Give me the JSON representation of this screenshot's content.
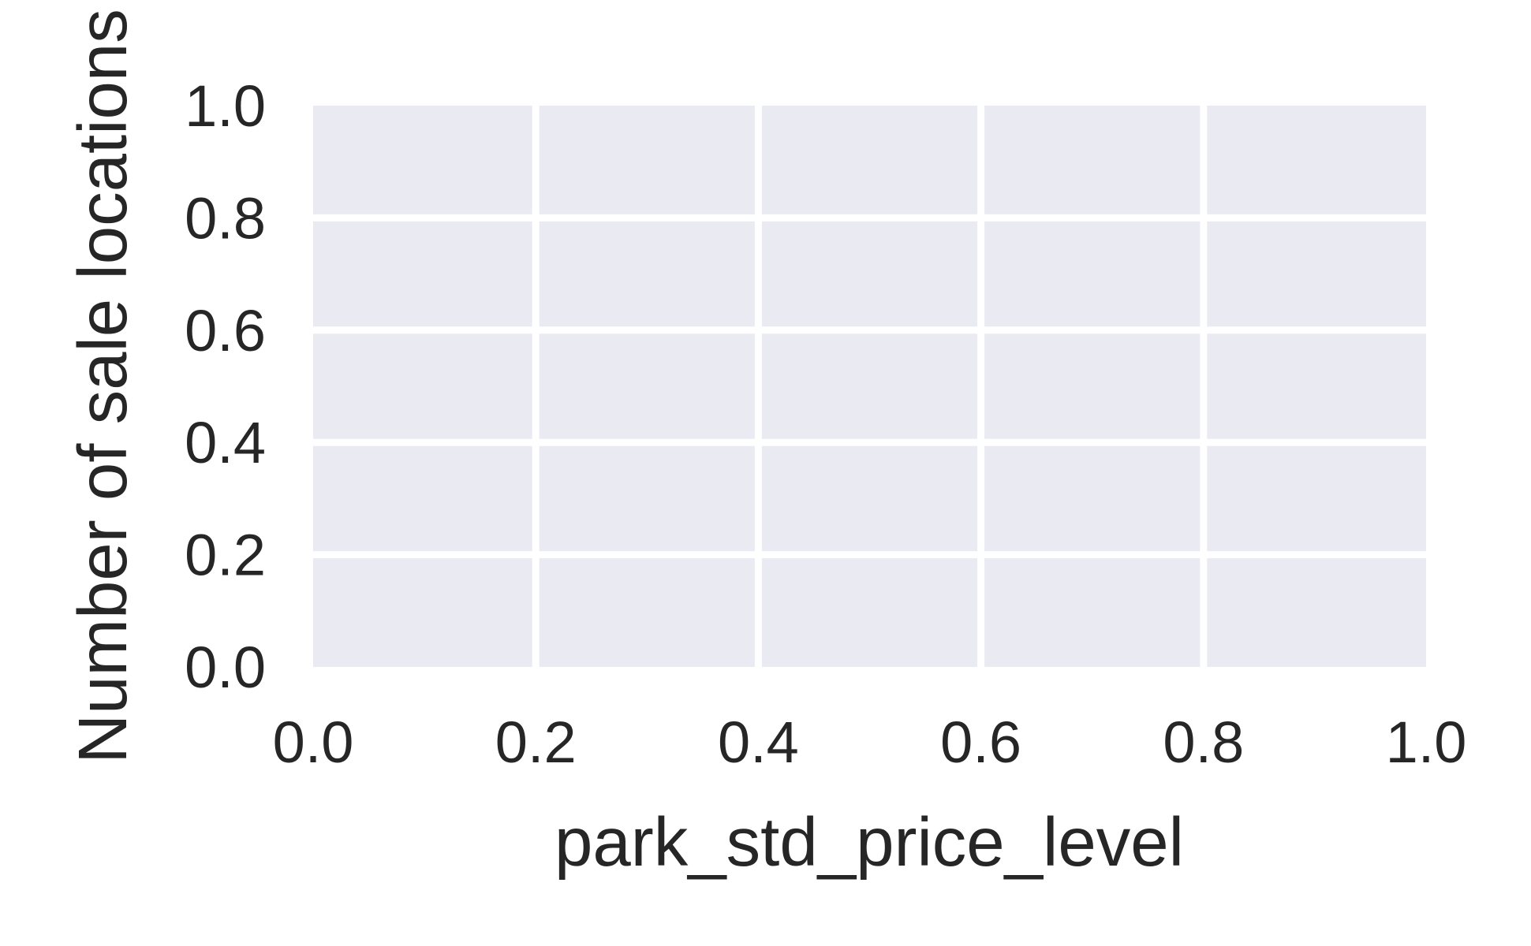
{
  "chart_data": {
    "type": "bar",
    "title": "",
    "xlabel": "park_std_price_level",
    "ylabel": "Number of sale locations",
    "xlim": [
      0.0,
      1.0
    ],
    "ylim": [
      0.0,
      1.0
    ],
    "xticks": [
      "0.0",
      "0.2",
      "0.4",
      "0.6",
      "0.8",
      "1.0"
    ],
    "yticks": [
      "0.0",
      "0.2",
      "0.4",
      "0.6",
      "0.8",
      "1.0"
    ],
    "series": [],
    "grid": true,
    "legend": "none",
    "colors": {
      "plot_background": "#eaeaf2",
      "grid": "#ffffff",
      "text": "#262626",
      "page_background": "#ffffff"
    }
  }
}
